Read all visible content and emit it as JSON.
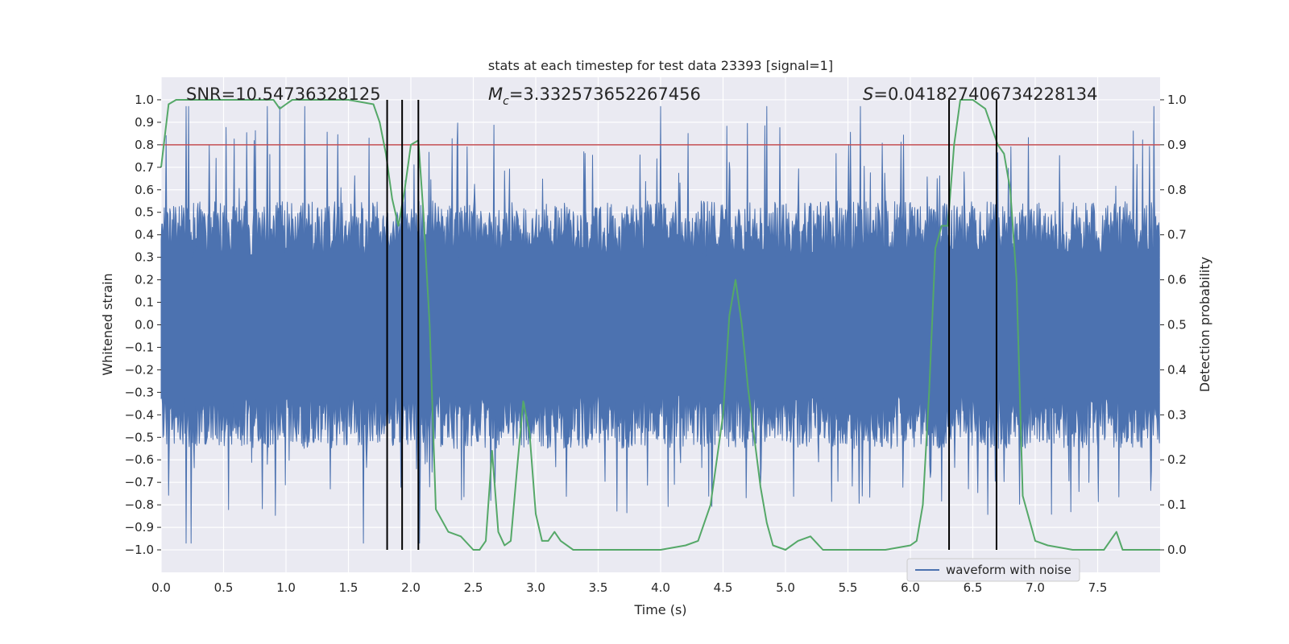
{
  "chart_data": {
    "type": "line",
    "title": "stats at each timestep for test data 23393 [signal=1]",
    "xlabel": "Time (s)",
    "ylabel_left": "Whitened strain",
    "ylabel_right": "Detection probability",
    "xlim": [
      0,
      8
    ],
    "ylim_left": [
      -1.1,
      1.1
    ],
    "ylim_right": [
      -0.05,
      1.05
    ],
    "grid": true,
    "x_ticks": [
      0.0,
      0.5,
      1.0,
      1.5,
      2.0,
      2.5,
      3.0,
      3.5,
      4.0,
      4.5,
      5.0,
      5.5,
      6.0,
      6.5,
      7.0,
      7.5
    ],
    "x_tick_labels": [
      "0.0",
      "0.5",
      "1.0",
      "1.5",
      "2.0",
      "2.5",
      "3.0",
      "3.5",
      "4.0",
      "4.5",
      "5.0",
      "5.5",
      "6.0",
      "6.5",
      "7.0",
      "7.5"
    ],
    "y_left_ticks": [
      -1.0,
      -0.9,
      -0.8,
      -0.7,
      -0.6,
      -0.5,
      -0.4,
      -0.3,
      -0.2,
      -0.1,
      0.0,
      0.1,
      0.2,
      0.3,
      0.4,
      0.5,
      0.6,
      0.7,
      0.8,
      0.9,
      1.0
    ],
    "y_left_tick_labels": [
      "−1.0",
      "−0.9",
      "−0.8",
      "−0.7",
      "−0.6",
      "−0.5",
      "−0.4",
      "−0.3",
      "−0.2",
      "−0.1",
      "0.0",
      "0.1",
      "0.2",
      "0.3",
      "0.4",
      "0.5",
      "0.6",
      "0.7",
      "0.8",
      "0.9",
      "1.0"
    ],
    "y_right_ticks": [
      0.0,
      0.1,
      0.2,
      0.3,
      0.4,
      0.5,
      0.6,
      0.7,
      0.8,
      0.9,
      1.0
    ],
    "y_right_tick_labels": [
      "0.0",
      "0.1",
      "0.2",
      "0.3",
      "0.4",
      "0.5",
      "0.6",
      "0.7",
      "0.8",
      "0.9",
      "1.0"
    ],
    "annotations": {
      "snr": "SNR=10.54736328125",
      "mc_symbol": "M",
      "mc_subscript": "c",
      "mc_value": "=3.332573652267456",
      "s_symbol": "S",
      "s_value": "=0.041827406734228134"
    },
    "threshold": {
      "value": 0.8,
      "color": "#c44e52"
    },
    "vertical_lines_x": [
      1.81,
      1.93,
      2.06,
      6.31,
      6.69
    ],
    "waveform": {
      "name": "waveform with noise",
      "color": "#4c72b0",
      "seed": 23393,
      "samples": 1600,
      "typical_abs_range": [
        0.3,
        0.55
      ],
      "peak_times_high": [
        0.2,
        0.22,
        0.85,
        0.95,
        1.15,
        4.0,
        4.85,
        5.6,
        7.95
      ],
      "peak_times_low": [
        0.2,
        0.24,
        1.62,
        2.07
      ]
    },
    "probability": {
      "color": "#55a868",
      "x": [
        0.0,
        0.06,
        0.12,
        0.2,
        0.3,
        0.5,
        0.7,
        0.9,
        0.95,
        1.0,
        1.05,
        1.1,
        1.3,
        1.5,
        1.7,
        1.75,
        1.8,
        1.85,
        1.9,
        1.95,
        2.0,
        2.06,
        2.1,
        2.15,
        2.2,
        2.3,
        2.4,
        2.5,
        2.55,
        2.6,
        2.65,
        2.7,
        2.75,
        2.8,
        2.85,
        2.9,
        2.95,
        3.0,
        3.05,
        3.1,
        3.15,
        3.2,
        3.3,
        3.5,
        3.7,
        3.9,
        4.0,
        4.2,
        4.3,
        4.4,
        4.5,
        4.55,
        4.6,
        4.65,
        4.7,
        4.8,
        4.85,
        4.9,
        5.0,
        5.1,
        5.2,
        5.3,
        5.6,
        5.8,
        6.0,
        6.05,
        6.1,
        6.15,
        6.2,
        6.25,
        6.3,
        6.35,
        6.4,
        6.45,
        6.5,
        6.6,
        6.65,
        6.7,
        6.75,
        6.8,
        6.85,
        6.9,
        7.0,
        7.1,
        7.3,
        7.5,
        7.55,
        7.6,
        7.65,
        7.7,
        7.8,
        7.9,
        8.0
      ],
      "y": [
        0.85,
        0.99,
        1.0,
        1.0,
        1.0,
        1.0,
        1.0,
        1.0,
        0.98,
        0.99,
        1.0,
        1.0,
        1.0,
        1.0,
        0.99,
        0.95,
        0.88,
        0.78,
        0.72,
        0.8,
        0.9,
        0.91,
        0.75,
        0.5,
        0.09,
        0.04,
        0.03,
        0.0,
        0.0,
        0.02,
        0.22,
        0.04,
        0.01,
        0.02,
        0.18,
        0.33,
        0.26,
        0.08,
        0.02,
        0.02,
        0.04,
        0.02,
        0.0,
        0.0,
        0.0,
        0.0,
        0.0,
        0.01,
        0.02,
        0.1,
        0.3,
        0.52,
        0.6,
        0.5,
        0.36,
        0.14,
        0.06,
        0.01,
        0.0,
        0.02,
        0.03,
        0.0,
        0.0,
        0.0,
        0.01,
        0.02,
        0.1,
        0.35,
        0.67,
        0.72,
        0.72,
        0.9,
        1.0,
        1.0,
        1.0,
        0.98,
        0.94,
        0.9,
        0.88,
        0.8,
        0.6,
        0.12,
        0.02,
        0.01,
        0.0,
        0.0,
        0.0,
        0.02,
        0.04,
        0.0,
        0.0,
        0.0,
        0.0
      ]
    },
    "legend": {
      "label": "waveform with noise",
      "loc": "lower-right"
    }
  }
}
